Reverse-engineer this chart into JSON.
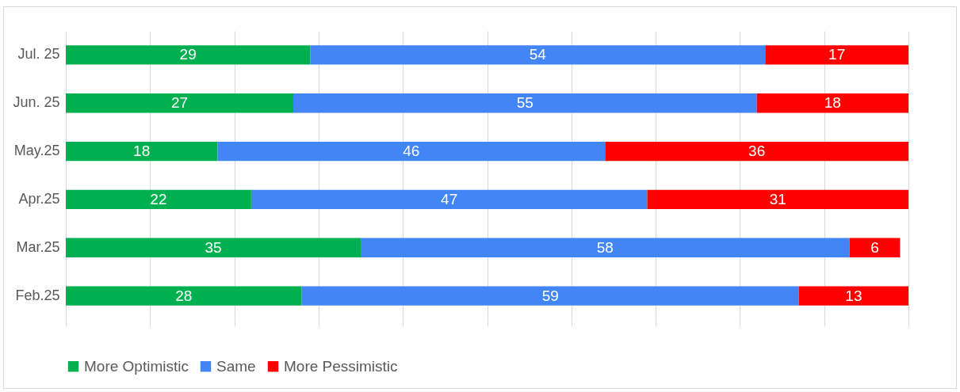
{
  "chart_data": {
    "type": "bar",
    "orientation": "horizontal",
    "stacked": true,
    "data_labels": true,
    "categories": [
      "Jul. 25",
      "Jun. 25",
      "May.25",
      "Apr.25",
      "Mar.25",
      "Feb.25"
    ],
    "series": [
      {
        "name": "More Optimistic",
        "color": "#00b050",
        "values": [
          29,
          27,
          18,
          22,
          35,
          28
        ]
      },
      {
        "name": "Same",
        "color": "#4285f4",
        "values": [
          54,
          55,
          46,
          47,
          58,
          59
        ]
      },
      {
        "name": "More Pessimistic",
        "color": "#ff0000",
        "values": [
          17,
          18,
          36,
          31,
          6,
          13
        ]
      }
    ],
    "xlim": [
      0,
      100
    ],
    "xticks": [
      {
        "value": 0,
        "label": null
      },
      {
        "value": 10,
        "label": null
      },
      {
        "value": 20,
        "label": null
      },
      {
        "value": 30,
        "label": null
      },
      {
        "value": 40,
        "label": null
      },
      {
        "value": 50,
        "label": null
      },
      {
        "value": 60,
        "label": null
      },
      {
        "value": 70,
        "label": null
      },
      {
        "value": 80,
        "label": null
      },
      {
        "value": 90,
        "label": null
      },
      {
        "value": 100,
        "label": null
      }
    ],
    "tick_labels": "y",
    "grid": "x",
    "legend": "bottom"
  }
}
